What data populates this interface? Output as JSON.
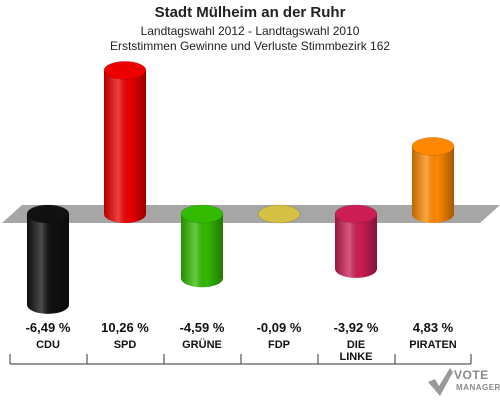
{
  "header": {
    "title": "Stadt Mülheim an der Ruhr",
    "subtitle": "Landtagswahl 2012 - Landtagswahl 2010",
    "subtitle2": "Erststimmen Gewinne und Verluste Stimmbezirk 162"
  },
  "chart_data": {
    "type": "bar",
    "categories": [
      "CDU",
      "SPD",
      "GRÜNE",
      "FDP",
      "DIE LINKE",
      "PIRATEN"
    ],
    "values": [
      -6.49,
      10.26,
      -4.59,
      -0.09,
      -3.92,
      4.83
    ],
    "value_labels": [
      "-6,49 %",
      "10,26 %",
      "-4,59 %",
      "-0,09 %",
      "-3,92 %",
      "4,83 %"
    ],
    "colors": [
      "#111111",
      "#ee0000",
      "#33bb00",
      "#d4c044",
      "#cc1e55",
      "#ff8800"
    ],
    "title": "Stadt Mülheim an der Ruhr",
    "grid": false,
    "legend": "none"
  },
  "logo": {
    "line1": "VOTE",
    "line2": "MANAGER"
  }
}
